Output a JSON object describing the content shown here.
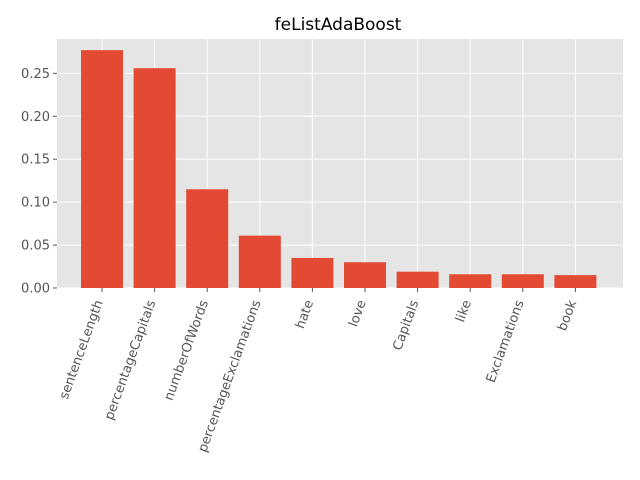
{
  "chart_data": {
    "type": "bar",
    "title": "feListAdaBoost",
    "xlabel": "",
    "ylabel": "",
    "categories": [
      "sentenceLength",
      "percentageCapitals",
      "numberOfWords",
      "percentageExclamations",
      "hate",
      "love",
      "Capitals",
      "like",
      "Exclamations",
      "book"
    ],
    "values": [
      0.277,
      0.256,
      0.115,
      0.061,
      0.035,
      0.03,
      0.019,
      0.016,
      0.016,
      0.015
    ],
    "ylim": [
      0,
      0.29
    ],
    "yticks": [
      0.0,
      0.05,
      0.1,
      0.15,
      0.2,
      0.25
    ],
    "ytick_labels": [
      "0.00",
      "0.05",
      "0.10",
      "0.15",
      "0.20",
      "0.25"
    ],
    "grid": true,
    "colors": {
      "bar": "#E24A33",
      "background": "#E5E5E5",
      "grid": "#FFFFFF"
    }
  }
}
